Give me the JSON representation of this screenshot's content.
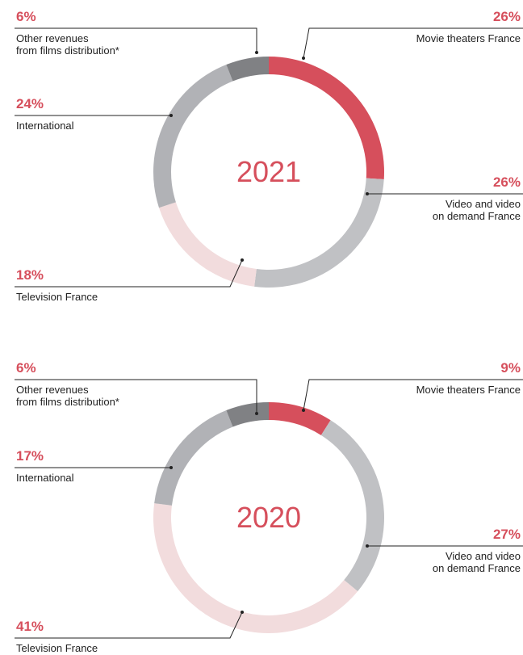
{
  "chart_data": [
    {
      "type": "donut",
      "center_label": "2021",
      "categories": [
        "Movie theaters France",
        "Video and video\non demand France",
        "Television France",
        "International",
        "Other revenues\nfrom films distribution*"
      ],
      "values": [
        26,
        26,
        18,
        24,
        6
      ],
      "value_labels": [
        "26%",
        "26%",
        "18%",
        "24%",
        "6%"
      ],
      "colors": [
        "#d64f5c",
        "#c0c1c4",
        "#f2dcdd",
        "#b1b2b6",
        "#808184"
      ]
    },
    {
      "type": "donut",
      "center_label": "2020",
      "categories": [
        "Movie theaters France",
        "Video and video\non demand France",
        "Television France",
        "International",
        "Other revenues\nfrom films distribution*"
      ],
      "values": [
        9,
        27,
        41,
        17,
        6
      ],
      "value_labels": [
        "9%",
        "27%",
        "41%",
        "17%",
        "6%"
      ],
      "colors": [
        "#d64f5c",
        "#c0c1c4",
        "#f2dcdd",
        "#b1b2b6",
        "#808184"
      ]
    }
  ]
}
